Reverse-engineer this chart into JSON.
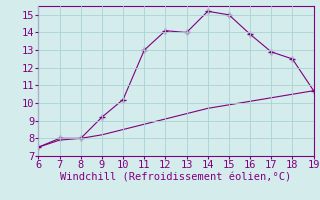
{
  "xlabel": "Windchill (Refroidissement éolien,°C)",
  "xlim": [
    6,
    19
  ],
  "ylim": [
    7,
    15.5
  ],
  "xticks": [
    6,
    7,
    8,
    9,
    10,
    11,
    12,
    13,
    14,
    15,
    16,
    17,
    18,
    19
  ],
  "yticks": [
    7,
    8,
    9,
    10,
    11,
    12,
    13,
    14,
    15
  ],
  "line1_x": [
    6,
    7,
    8,
    9,
    10,
    11,
    12,
    13,
    14,
    15,
    16,
    17,
    18,
    19
  ],
  "line1_y": [
    7.5,
    8.0,
    8.0,
    9.2,
    10.2,
    13.0,
    14.1,
    14.0,
    15.2,
    15.0,
    13.9,
    12.9,
    12.5,
    10.7
  ],
  "line2_x": [
    6,
    7,
    8,
    9,
    10,
    11,
    12,
    13,
    14,
    15,
    16,
    17,
    18,
    19
  ],
  "line2_y": [
    7.5,
    7.9,
    8.0,
    8.2,
    8.5,
    8.8,
    9.1,
    9.4,
    9.7,
    9.9,
    10.1,
    10.3,
    10.5,
    10.7
  ],
  "line_color": "#800080",
  "bg_color": "#d4ecec",
  "grid_color": "#a8d4d4",
  "tick_color": "#800080",
  "label_color": "#800080",
  "tick_fontsize": 7.5,
  "xlabel_fontsize": 7.5
}
